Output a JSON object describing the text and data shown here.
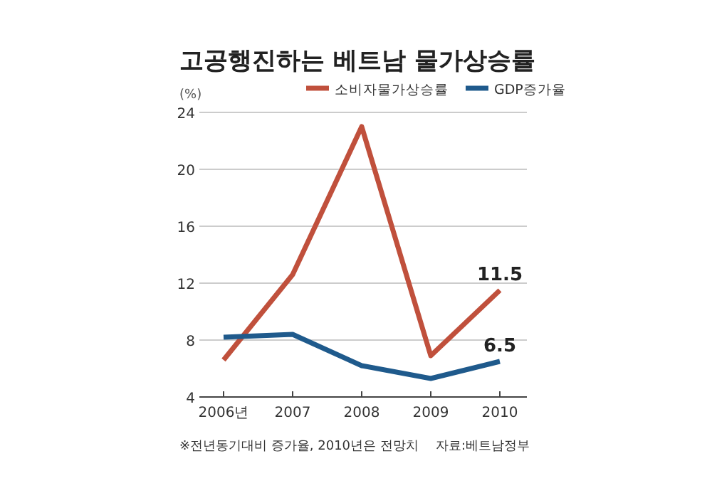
{
  "chart_data": {
    "type": "line",
    "title": "고공행진하는 베트남 물가상승률",
    "ylabel": "(%)",
    "categories": [
      "2006년",
      "2007",
      "2008",
      "2009",
      "2010"
    ],
    "series": [
      {
        "name": "소비자물가상승률",
        "color": "#c0503c",
        "values": [
          6.6,
          12.6,
          23.0,
          6.9,
          11.5
        ],
        "value_labels": [
          null,
          null,
          null,
          null,
          "11.5"
        ]
      },
      {
        "name": "GDP증가율",
        "color": "#1f5a8c",
        "values": [
          8.2,
          8.4,
          6.2,
          5.3,
          6.5
        ],
        "value_labels": [
          null,
          null,
          null,
          null,
          "6.5"
        ]
      }
    ],
    "ylim": [
      4,
      24
    ],
    "yticks": [
      4,
      8,
      12,
      16,
      20,
      24
    ],
    "grid": "y",
    "legend": "top right",
    "marker": "none",
    "line_style": "solid",
    "annotations": [
      "※전년동기대비 증가율, 2010년은 전망치",
      "자료:베트남정부"
    ]
  }
}
